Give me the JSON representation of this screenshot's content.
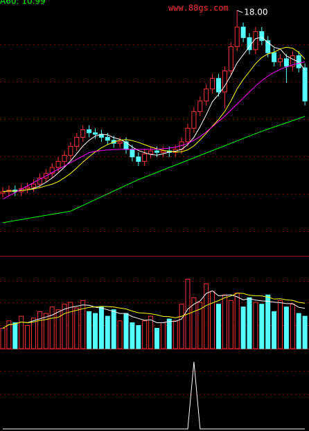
{
  "chart_data": [
    {
      "type": "candlestick",
      "open": [
        5.9,
        6.0,
        6.1,
        6.0,
        6.2,
        6.3,
        6.5,
        6.9,
        7.2,
        7.6,
        8.0,
        8.4,
        9.0,
        9.6,
        10.1,
        9.9,
        9.8,
        9.6,
        9.4,
        9.2,
        9.3,
        8.8,
        8.3,
        8.0,
        8.5,
        8.7,
        8.6,
        8.7,
        8.6,
        8.8,
        9.3,
        10.2,
        11.3,
        12.0,
        12.8,
        13.5,
        12.6,
        14.0,
        15.6,
        16.9,
        16.2,
        15.4,
        16.6,
        16.0,
        15.2,
        14.6,
        14.8,
        14.3,
        15.0,
        14.2
      ],
      "high": [
        6.3,
        6.4,
        6.4,
        6.5,
        6.6,
        6.8,
        7.2,
        7.5,
        7.9,
        8.3,
        8.7,
        9.3,
        9.9,
        10.4,
        10.4,
        10.2,
        10.1,
        9.9,
        9.7,
        9.6,
        9.6,
        9.1,
        8.6,
        8.8,
        9.0,
        9.0,
        9.0,
        9.0,
        9.1,
        9.6,
        10.5,
        11.6,
        12.3,
        13.1,
        13.8,
        13.8,
        14.3,
        15.9,
        18.0,
        17.2,
        16.5,
        16.9,
        16.9,
        16.3,
        15.5,
        15.1,
        15.1,
        15.3,
        15.3,
        14.5
      ],
      "low": [
        5.6,
        5.7,
        5.7,
        5.7,
        5.9,
        6.0,
        6.2,
        6.6,
        6.9,
        7.3,
        7.7,
        8.1,
        8.7,
        9.3,
        9.6,
        9.5,
        9.3,
        9.1,
        8.9,
        8.9,
        8.5,
        8.0,
        7.7,
        7.7,
        8.2,
        8.3,
        8.3,
        8.3,
        8.3,
        8.5,
        9.0,
        9.9,
        11.0,
        11.7,
        12.5,
        12.3,
        11.5,
        13.7,
        15.3,
        15.9,
        15.1,
        15.1,
        15.7,
        14.9,
        14.3,
        14.3,
        13.2,
        14.0,
        13.9,
        11.7
      ],
      "close": [
        6.0,
        6.1,
        6.0,
        6.2,
        6.3,
        6.5,
        6.9,
        7.2,
        7.6,
        8.0,
        8.4,
        9.0,
        9.6,
        10.1,
        9.9,
        9.8,
        9.6,
        9.4,
        9.2,
        9.3,
        8.8,
        8.3,
        8.0,
        8.5,
        8.7,
        8.6,
        8.7,
        8.6,
        8.8,
        9.3,
        10.2,
        11.3,
        12.0,
        12.8,
        13.5,
        12.6,
        14.0,
        15.6,
        16.9,
        16.2,
        15.4,
        16.6,
        16.0,
        15.2,
        14.6,
        14.8,
        14.3,
        15.0,
        14.2,
        12.0
      ],
      "up_color": "#ff3232",
      "down_color": "#54ffff",
      "ylim": [
        1.74,
        18.69
      ],
      "series": [
        {
          "color": "#ffffff",
          "values": [
            6.0,
            6.05,
            6.03,
            6.08,
            6.12,
            6.22,
            6.38,
            6.62,
            6.9,
            7.24,
            7.62,
            8.04,
            8.52,
            9.02,
            9.4,
            9.68,
            9.8,
            9.76,
            9.58,
            9.46,
            9.26,
            8.96,
            8.72,
            8.58,
            8.46,
            8.42,
            8.5,
            8.62,
            8.68,
            8.8,
            9.12,
            9.6,
            10.3,
            11.1,
            11.96,
            12.44,
            13.0,
            13.7,
            14.52,
            15.06,
            15.62,
            16.14,
            16.22,
            15.88,
            15.56,
            15.44,
            14.98,
            14.78,
            14.58,
            14.06
          ]
        },
        {
          "color": "#ffff00",
          "values": [
            6.0,
            6.05,
            6.03,
            6.08,
            6.12,
            6.18,
            6.27,
            6.38,
            6.5,
            6.66,
            6.92,
            7.21,
            7.57,
            7.96,
            8.3,
            8.63,
            8.9,
            9.12,
            9.28,
            9.41,
            9.45,
            9.38,
            9.26,
            9.11,
            8.96,
            8.84,
            8.73,
            8.67,
            8.63,
            8.63,
            8.77,
            9.03,
            9.43,
            9.86,
            10.34,
            10.78,
            11.31,
            12.0,
            12.81,
            13.43,
            13.95,
            14.48,
            14.88,
            15.12,
            15.23,
            15.45,
            15.56,
            15.5,
            15.22,
            14.78
          ]
        },
        {
          "color": "#ff00ff",
          "values": [
            5.5,
            5.72,
            5.94,
            6.16,
            6.38,
            6.6,
            6.82,
            7.04,
            7.26,
            7.48,
            7.7,
            7.92,
            8.14,
            8.36,
            8.58,
            8.66,
            8.72,
            8.76,
            8.78,
            8.8,
            8.8,
            8.8,
            8.8,
            8.8,
            8.8,
            8.82,
            8.84,
            8.88,
            8.95,
            9.05,
            9.2,
            9.4,
            9.65,
            9.95,
            10.3,
            10.65,
            11.0,
            11.4,
            11.8,
            12.2,
            12.6,
            13.0,
            13.35,
            13.65,
            13.9,
            14.1,
            14.25,
            14.4,
            14.5,
            14.6
          ]
        },
        {
          "color": "#00ff00",
          "values": [
            3.94,
            4.01,
            4.08,
            4.15,
            4.22,
            4.29,
            4.36,
            4.43,
            4.5,
            4.57,
            4.64,
            4.71,
            4.9,
            5.09,
            5.28,
            5.47,
            5.66,
            5.85,
            6.04,
            6.23,
            6.42,
            6.61,
            6.8,
            6.96,
            7.12,
            7.28,
            7.44,
            7.6,
            7.76,
            7.92,
            8.08,
            8.24,
            8.4,
            8.56,
            8.72,
            8.88,
            9.04,
            9.2,
            9.36,
            9.52,
            9.68,
            9.84,
            10.0,
            10.14,
            10.28,
            10.42,
            10.56,
            10.7,
            10.84,
            10.99
          ]
        }
      ],
      "ma_label": "A60: 10.99",
      "ma_label_color": "#00ff00",
      "peak_label": "18.00",
      "watermark": "www.88gs.com",
      "watermark_color": "#ff3030"
    },
    {
      "type": "bar",
      "values": [
        22,
        30,
        28,
        35,
        25,
        33,
        40,
        38,
        45,
        42,
        48,
        50,
        44,
        52,
        40,
        38,
        45,
        35,
        42,
        30,
        38,
        28,
        25,
        30,
        35,
        22,
        28,
        32,
        30,
        48,
        75,
        55,
        50,
        70,
        62,
        48,
        58,
        52,
        60,
        45,
        55,
        50,
        48,
        58,
        40,
        52,
        45,
        48,
        38,
        35
      ],
      "ylim": [
        0,
        100
      ],
      "series": [
        {
          "color": "#ffffff",
          "values": [
            22,
            26,
            26.7,
            28.8,
            28,
            30.2,
            32.2,
            34.2,
            36.2,
            39.6,
            42.6,
            44.6,
            45.8,
            47.2,
            46.8,
            44.8,
            43.8,
            42,
            40,
            38,
            38,
            34.6,
            32.6,
            30.6,
            31.2,
            28,
            28,
            29.4,
            29.4,
            32,
            42.6,
            48,
            51.6,
            59.6,
            62.4,
            57,
            57.6,
            58,
            56,
            52.6,
            54,
            52.4,
            51.6,
            51.2,
            50.2,
            49.6,
            48.6,
            48.6,
            44.6,
            43.6
          ]
        },
        {
          "color": "#ffff00",
          "values": [
            22,
            26,
            26.7,
            28.8,
            28,
            28.8,
            30.4,
            31.4,
            32.9,
            33.8,
            37.8,
            39.8,
            41.4,
            43.1,
            44.6,
            45.1,
            45.6,
            45.3,
            45,
            43.8,
            42.8,
            40.6,
            38.7,
            38.2,
            37.7,
            36.5,
            34.8,
            34.5,
            33.3,
            35,
            37.4,
            40.1,
            42.6,
            46.6,
            49.3,
            51.9,
            54.9,
            56.9,
            59.9,
            59.6,
            57.6,
            57.1,
            56.9,
            55.7,
            53.5,
            53.9,
            52.6,
            52.2,
            50,
            49
          ]
        }
      ]
    },
    {
      "type": "line",
      "values": [
        0,
        0,
        0,
        0,
        0,
        0,
        0,
        0,
        0,
        0,
        0,
        0,
        0,
        0,
        0,
        0,
        0,
        0,
        0,
        0,
        0,
        0,
        0,
        0,
        0,
        0,
        0,
        0,
        0,
        0,
        0,
        97,
        0,
        0,
        0,
        0,
        0,
        0,
        0,
        0,
        0,
        0,
        0,
        0,
        0,
        0,
        0,
        0,
        0,
        0
      ],
      "ylim": [
        0,
        100
      ],
      "color": "#ffffff"
    }
  ]
}
